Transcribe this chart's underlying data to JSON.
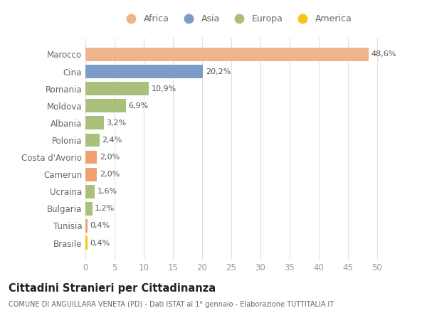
{
  "countries": [
    "Brasile",
    "Tunisia",
    "Bulgaria",
    "Ucraina",
    "Camerun",
    "Costa d'Avorio",
    "Polonia",
    "Albania",
    "Moldova",
    "Romania",
    "Cina",
    "Marocco"
  ],
  "values": [
    0.4,
    0.4,
    1.2,
    1.6,
    2.0,
    2.0,
    2.4,
    3.2,
    6.9,
    10.9,
    20.2,
    48.6
  ],
  "labels": [
    "0,4%",
    "0,4%",
    "1,2%",
    "1,6%",
    "2,0%",
    "2,0%",
    "2,4%",
    "3,2%",
    "6,9%",
    "10,9%",
    "20,2%",
    "48,6%"
  ],
  "colors": [
    "#F5C518",
    "#F0A070",
    "#A8C07A",
    "#A8C07A",
    "#F0A070",
    "#F0A070",
    "#A8C07A",
    "#A8C07A",
    "#A8C07A",
    "#A8C07A",
    "#7B9DC8",
    "#F0B48A"
  ],
  "legend_labels": [
    "Africa",
    "Asia",
    "Europa",
    "America"
  ],
  "legend_colors": [
    "#F0B48A",
    "#7B9DC8",
    "#A8C07A",
    "#F5C518"
  ],
  "title": "Cittadini Stranieri per Cittadinanza",
  "subtitle": "COMUNE DI ANGUILLARA VENETA (PD) - Dati ISTAT al 1° gennaio - Elaborazione TUTTITALIA.IT",
  "xlim": [
    0,
    52
  ],
  "xticks": [
    0,
    5,
    10,
    15,
    20,
    25,
    30,
    35,
    40,
    45,
    50
  ],
  "bg_color": "#ffffff",
  "grid_color": "#e0e0e0"
}
